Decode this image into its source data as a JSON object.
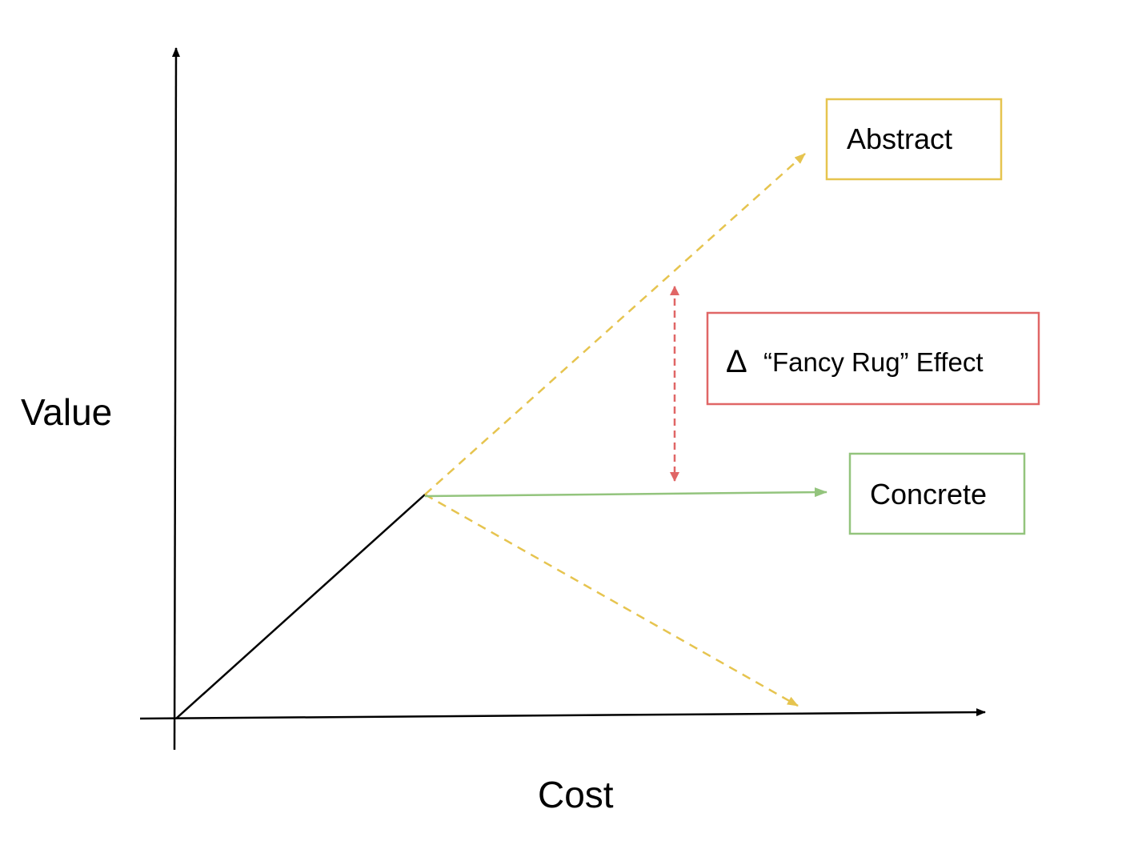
{
  "axes": {
    "y_label": "Value",
    "x_label": "Cost"
  },
  "boxes": {
    "abstract": {
      "label": "Abstract"
    },
    "concrete": {
      "label": "Concrete"
    },
    "effect": {
      "symbol": "Δ",
      "label": "“Fancy Rug” Effect"
    }
  },
  "colors": {
    "axis": "#000000",
    "abstract": "#e6c44f",
    "concrete": "#93c47d",
    "effect": "#e06666"
  }
}
